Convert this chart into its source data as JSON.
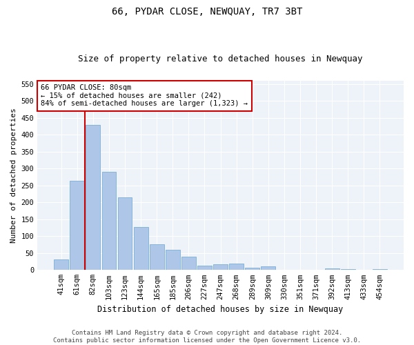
{
  "title": "66, PYDAR CLOSE, NEWQUAY, TR7 3BT",
  "subtitle": "Size of property relative to detached houses in Newquay",
  "xlabel": "Distribution of detached houses by size in Newquay",
  "ylabel": "Number of detached properties",
  "categories": [
    "41sqm",
    "61sqm",
    "82sqm",
    "103sqm",
    "123sqm",
    "144sqm",
    "165sqm",
    "185sqm",
    "206sqm",
    "227sqm",
    "247sqm",
    "268sqm",
    "289sqm",
    "309sqm",
    "330sqm",
    "351sqm",
    "371sqm",
    "392sqm",
    "413sqm",
    "433sqm",
    "454sqm"
  ],
  "values": [
    32,
    264,
    428,
    290,
    214,
    128,
    76,
    60,
    39,
    13,
    17,
    18,
    7,
    10,
    0,
    0,
    0,
    4,
    2,
    0,
    3
  ],
  "bar_color": "#aec6e8",
  "bar_edge_color": "#7aafd4",
  "vline_color": "#cc0000",
  "annotation_text": "66 PYDAR CLOSE: 80sqm\n← 15% of detached houses are smaller (242)\n84% of semi-detached houses are larger (1,323) →",
  "annotation_box_color": "#ffffff",
  "annotation_box_edgecolor": "#cc0000",
  "ylim": [
    0,
    560
  ],
  "yticks": [
    0,
    50,
    100,
    150,
    200,
    250,
    300,
    350,
    400,
    450,
    500,
    550
  ],
  "bg_color": "#eef2f9",
  "footer_text": "Contains HM Land Registry data © Crown copyright and database right 2024.\nContains public sector information licensed under the Open Government Licence v3.0.",
  "title_fontsize": 10,
  "subtitle_fontsize": 9,
  "xlabel_fontsize": 8.5,
  "ylabel_fontsize": 8,
  "tick_fontsize": 7.5,
  "annotation_fontsize": 7.5,
  "footer_fontsize": 6.5
}
